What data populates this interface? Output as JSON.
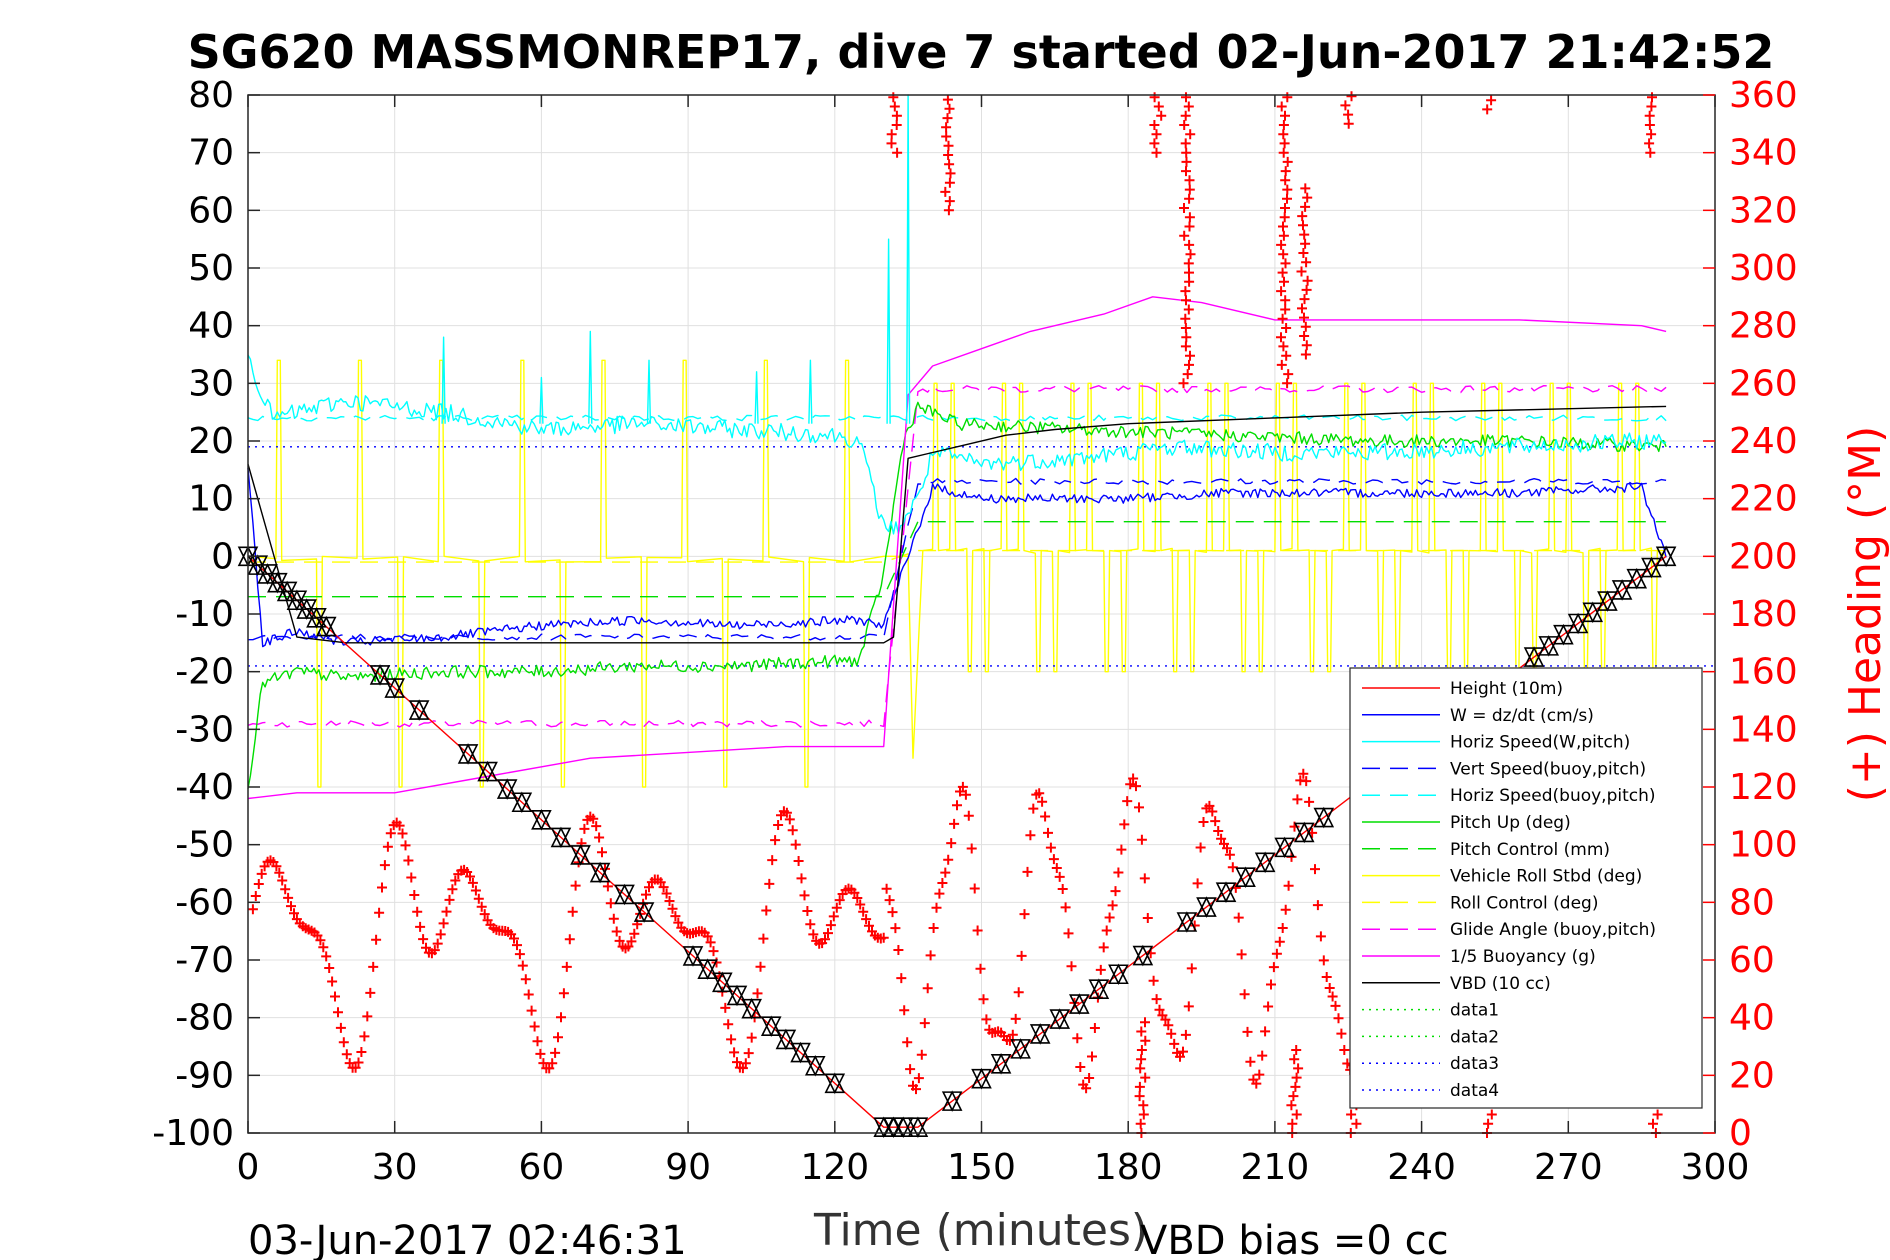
{
  "chart_data": {
    "type": "line",
    "title": "SG620 MASSMONREP17, dive 7 started 02-Jun-2017 21:42:52",
    "xlabel": "Time (minutes)",
    "ylabel_right": "(+) Heading (°M)",
    "xlim": [
      0,
      300
    ],
    "ylim_left": [
      -100,
      80
    ],
    "ylim_right": [
      0,
      360
    ],
    "x_ticks": [
      "0",
      "30",
      "60",
      "90",
      "120",
      "150",
      "180",
      "210",
      "240",
      "270",
      "300"
    ],
    "y_ticks_left": [
      "80",
      "70",
      "60",
      "50",
      "40",
      "30",
      "20",
      "10",
      "0",
      "-10",
      "-20",
      "-30",
      "-40",
      "-50",
      "-60",
      "-70",
      "-80",
      "-90",
      "-100"
    ],
    "y_ticks_right": [
      "360",
      "340",
      "320",
      "300",
      "280",
      "260",
      "240",
      "220",
      "200",
      "180",
      "160",
      "140",
      "120",
      "100",
      "80",
      "60",
      "40",
      "20",
      "0"
    ],
    "grid": true,
    "legend_position": "bottom-right",
    "footer_left": "03-Jun-2017 02:46:31",
    "footer_right": "VBD bias =0 cc",
    "legend": [
      {
        "label": "Height (10m)",
        "color": "#ff0000",
        "style": "solid"
      },
      {
        "label": "W = dz/dt (cm/s)",
        "color": "#0000ff",
        "style": "solid"
      },
      {
        "label": "Horiz Speed(W,pitch)",
        "color": "#00ffff",
        "style": "solid"
      },
      {
        "label": "Vert Speed(buoy,pitch)",
        "color": "#0000ff",
        "style": "dashed"
      },
      {
        "label": "Horiz Speed(buoy,pitch)",
        "color": "#00ffff",
        "style": "dashed"
      },
      {
        "label": "Pitch Up (deg)",
        "color": "#00dd00",
        "style": "solid"
      },
      {
        "label": "Pitch Control (mm)",
        "color": "#00dd00",
        "style": "dashed"
      },
      {
        "label": "Vehicle Roll Stbd (deg)",
        "color": "#ffff00",
        "style": "solid"
      },
      {
        "label": "Roll Control (deg)",
        "color": "#ffff00",
        "style": "dashed"
      },
      {
        "label": "Glide Angle (buoy,pitch)",
        "color": "#ff00ff",
        "style": "dashed"
      },
      {
        "label": "1/5 Buoyancy (g)",
        "color": "#ff00ff",
        "style": "solid"
      },
      {
        "label": "VBD (10 cc)",
        "color": "#000000",
        "style": "solid"
      },
      {
        "label": "data1",
        "color": "#00dd00",
        "style": "dotted"
      },
      {
        "label": "data2",
        "color": "#00dd00",
        "style": "dotted"
      },
      {
        "label": "data3",
        "color": "#0000ff",
        "style": "dotted"
      },
      {
        "label": "data4",
        "color": "#0000ff",
        "style": "dotted"
      }
    ],
    "series": [
      {
        "key": "height",
        "x": [
          0,
          130,
          137,
          290
        ],
        "y": [
          0,
          -99,
          -99,
          0
        ]
      },
      {
        "key": "w",
        "x": [
          0,
          3,
          10,
          20,
          40,
          60,
          80,
          100,
          125,
          130,
          135,
          140,
          150,
          180,
          200,
          230,
          260,
          285,
          290
        ],
        "y": [
          16,
          -15,
          -13,
          -15,
          -14,
          -12,
          -11,
          -12,
          -11,
          -12,
          0,
          12,
          10,
          10,
          11,
          11,
          11,
          12,
          0
        ]
      },
      {
        "key": "hspeed_w",
        "x": [
          0,
          2,
          5,
          10,
          20,
          40,
          60,
          80,
          100,
          120,
          125,
          130,
          133,
          137,
          140,
          150,
          170,
          190,
          210,
          230,
          260,
          285,
          290
        ],
        "y": [
          36,
          30,
          24,
          25,
          27,
          25,
          22,
          23,
          22,
          21,
          20,
          5,
          5,
          10,
          18,
          16,
          17,
          19,
          18,
          18,
          19,
          20,
          20
        ]
      },
      {
        "key": "vspeed_buoy",
        "x": [
          0,
          130,
          137,
          290
        ],
        "y": [
          -14,
          -14,
          13,
          13
        ]
      },
      {
        "key": "hspeed_buoy",
        "x": [
          0,
          130,
          137,
          290
        ],
        "y": [
          24,
          24,
          24,
          24
        ]
      },
      {
        "key": "pitch_up",
        "x": [
          0,
          3,
          10,
          20,
          40,
          60,
          80,
          100,
          125,
          130,
          134,
          137,
          145,
          170,
          200,
          230,
          260,
          290
        ],
        "y": [
          -40,
          -22,
          -20,
          -21,
          -20,
          -20,
          -19,
          -19,
          -18,
          -3,
          20,
          26,
          23,
          22,
          21,
          20,
          20,
          19
        ]
      },
      {
        "key": "pitch_control",
        "x": [
          0,
          130,
          137,
          290
        ],
        "y": [
          -7,
          -7,
          6,
          6
        ]
      },
      {
        "key": "roll_control",
        "x": [
          0,
          130,
          137,
          290
        ],
        "y": [
          -1,
          -1,
          1,
          1
        ]
      },
      {
        "key": "glide_angle",
        "x": [
          0,
          130,
          137,
          290
        ],
        "y": [
          -29,
          -29,
          29,
          29
        ]
      },
      {
        "key": "buoyancy",
        "x": [
          0,
          10,
          30,
          50,
          70,
          90,
          110,
          130,
          135,
          140,
          150,
          160,
          175,
          185,
          195,
          210,
          230,
          260,
          285,
          290
        ],
        "y": [
          -42,
          -41,
          -41,
          -38,
          -35,
          -34,
          -33,
          -33,
          28,
          33,
          36,
          39,
          42,
          45,
          44,
          41,
          41,
          41,
          40,
          39
        ]
      },
      {
        "key": "vbd",
        "x": [
          0,
          10,
          20,
          130,
          132,
          135,
          140,
          145,
          155,
          165,
          180,
          210,
          240,
          290
        ],
        "y": [
          16,
          -14,
          -15,
          -15,
          -14,
          17,
          18,
          19,
          21,
          22,
          23,
          24,
          25,
          26
        ]
      },
      {
        "key": "data_pos",
        "x": [
          0,
          300
        ],
        "y": [
          19,
          19
        ]
      },
      {
        "key": "data_neg",
        "x": [
          0,
          300
        ],
        "y": [
          -19,
          -19
        ]
      }
    ]
  }
}
